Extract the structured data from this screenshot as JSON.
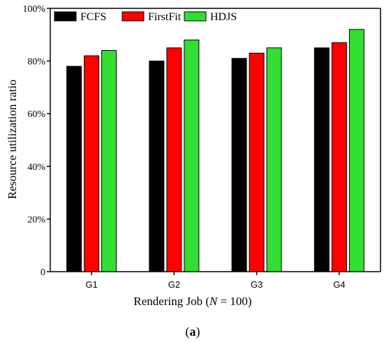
{
  "chart_data": {
    "type": "bar",
    "title": "",
    "xlabel_prefix": "Rendering Job (",
    "xlabel_var": "N",
    "xlabel_suffix": " = 100)",
    "ylabel": "Resource utilization ratio",
    "categories": [
      "G1",
      "G2",
      "G3",
      "G4"
    ],
    "series": [
      {
        "name": "FCFS",
        "values": [
          78,
          80,
          81,
          85
        ],
        "color": "#000000"
      },
      {
        "name": "FirstFit",
        "values": [
          82,
          85,
          83,
          87
        ],
        "color": "#ff0000"
      },
      {
        "name": "HDJS",
        "values": [
          84,
          88,
          85,
          92
        ],
        "color": "#33dd33"
      }
    ],
    "ylim": [
      0,
      100
    ],
    "yticks": [
      0,
      20,
      40,
      60,
      80,
      100
    ],
    "ytick_labels": [
      "0",
      "20%",
      "40%",
      "60%",
      "80%",
      "100%"
    ],
    "legend_position": "top-left",
    "grid": false
  },
  "caption_open": "(",
  "caption_letter": "a",
  "caption_close": ")"
}
